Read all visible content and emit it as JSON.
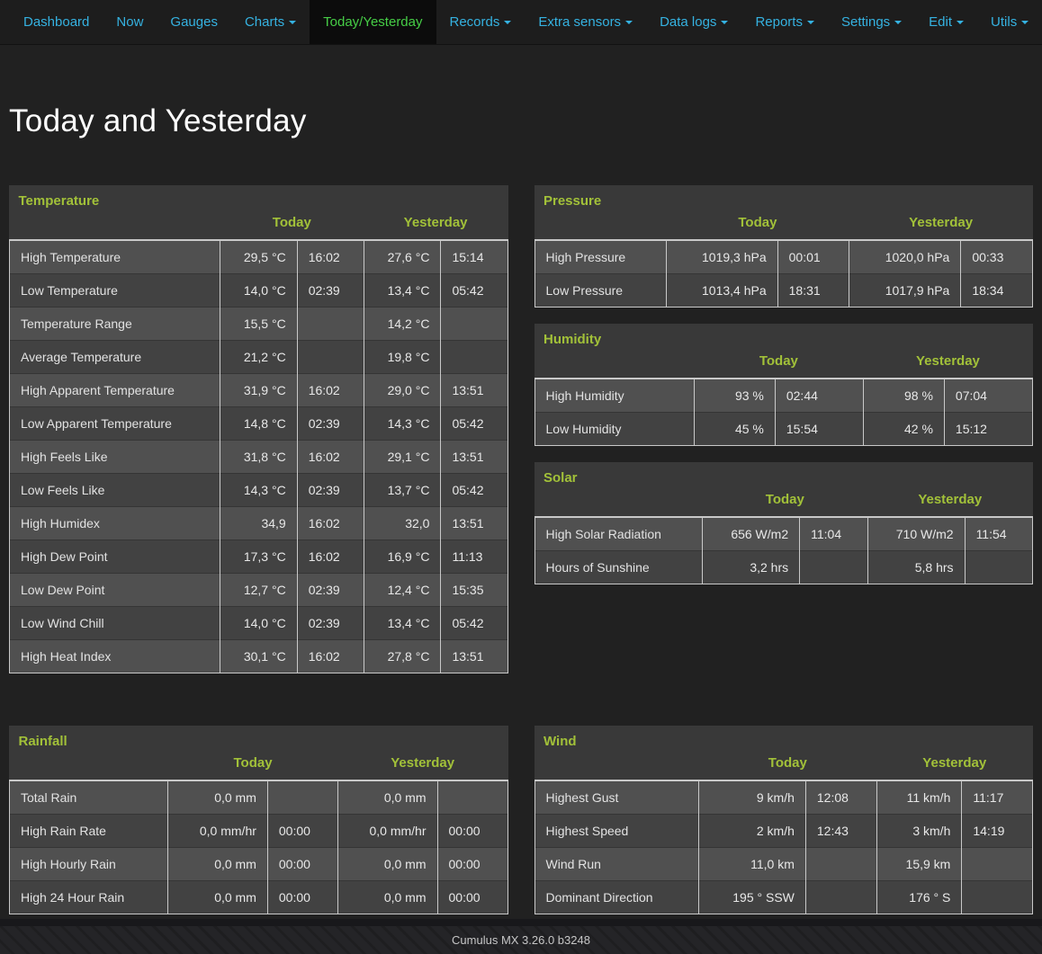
{
  "navbar": {
    "items": [
      {
        "label": "Dashboard",
        "dropdown": false,
        "active": false
      },
      {
        "label": "Now",
        "dropdown": false,
        "active": false
      },
      {
        "label": "Gauges",
        "dropdown": false,
        "active": false
      },
      {
        "label": "Charts",
        "dropdown": true,
        "active": false
      },
      {
        "label": "Today/Yesterday",
        "dropdown": false,
        "active": true
      },
      {
        "label": "Records",
        "dropdown": true,
        "active": false
      },
      {
        "label": "Extra sensors",
        "dropdown": true,
        "active": false
      },
      {
        "label": "Data logs",
        "dropdown": true,
        "active": false
      },
      {
        "label": "Reports",
        "dropdown": true,
        "active": false
      },
      {
        "label": "Settings",
        "dropdown": true,
        "active": false
      },
      {
        "label": "Edit",
        "dropdown": true,
        "active": false
      },
      {
        "label": "Utils",
        "dropdown": true,
        "active": false
      }
    ]
  },
  "page": {
    "title": "Today and Yesterday"
  },
  "colors": {
    "accent_green": "#a2c139",
    "nav_link_blue": "#35b2e1",
    "nav_active_green": "#46cd46",
    "row_odd": "#505050",
    "row_even": "#424242",
    "table_header_bg": "#393939"
  },
  "tables": [
    {
      "id": "temperature",
      "title": "Temperature",
      "today_label": "Today",
      "yesterday_label": "Yesterday",
      "rows": [
        {
          "label": "High Temperature",
          "today_val": "29,5 °C",
          "today_time": "16:02",
          "yest_val": "27,6 °C",
          "yest_time": "15:14"
        },
        {
          "label": "Low Temperature",
          "today_val": "14,0 °C",
          "today_time": "02:39",
          "yest_val": "13,4 °C",
          "yest_time": "05:42"
        },
        {
          "label": "Temperature Range",
          "today_val": "15,5 °C",
          "today_time": "",
          "yest_val": "14,2 °C",
          "yest_time": ""
        },
        {
          "label": "Average Temperature",
          "today_val": "21,2 °C",
          "today_time": "",
          "yest_val": "19,8 °C",
          "yest_time": ""
        },
        {
          "label": "High Apparent Temperature",
          "today_val": "31,9 °C",
          "today_time": "16:02",
          "yest_val": "29,0 °C",
          "yest_time": "13:51"
        },
        {
          "label": "Low Apparent Temperature",
          "today_val": "14,8 °C",
          "today_time": "02:39",
          "yest_val": "14,3 °C",
          "yest_time": "05:42"
        },
        {
          "label": "High Feels Like",
          "today_val": "31,8 °C",
          "today_time": "16:02",
          "yest_val": "29,1 °C",
          "yest_time": "13:51"
        },
        {
          "label": "Low Feels Like",
          "today_val": "14,3 °C",
          "today_time": "02:39",
          "yest_val": "13,7 °C",
          "yest_time": "05:42"
        },
        {
          "label": "High Humidex",
          "today_val": "34,9",
          "today_time": "16:02",
          "yest_val": "32,0",
          "yest_time": "13:51"
        },
        {
          "label": "High Dew Point",
          "today_val": "17,3 °C",
          "today_time": "16:02",
          "yest_val": "16,9 °C",
          "yest_time": "11:13"
        },
        {
          "label": "Low Dew Point",
          "today_val": "12,7 °C",
          "today_time": "02:39",
          "yest_val": "12,4 °C",
          "yest_time": "15:35"
        },
        {
          "label": "Low Wind Chill",
          "today_val": "14,0 °C",
          "today_time": "02:39",
          "yest_val": "13,4 °C",
          "yest_time": "05:42"
        },
        {
          "label": "High Heat Index",
          "today_val": "30,1 °C",
          "today_time": "16:02",
          "yest_val": "27,8 °C",
          "yest_time": "13:51"
        }
      ]
    },
    {
      "id": "pressure",
      "title": "Pressure",
      "today_label": "Today",
      "yesterday_label": "Yesterday",
      "rows": [
        {
          "label": "High Pressure",
          "today_val": "1019,3 hPa",
          "today_time": "00:01",
          "yest_val": "1020,0 hPa",
          "yest_time": "00:33"
        },
        {
          "label": "Low Pressure",
          "today_val": "1013,4 hPa",
          "today_time": "18:31",
          "yest_val": "1017,9 hPa",
          "yest_time": "18:34"
        }
      ]
    },
    {
      "id": "humidity",
      "title": "Humidity",
      "today_label": "Today",
      "yesterday_label": "Yesterday",
      "rows": [
        {
          "label": "High Humidity",
          "today_val": "93 %",
          "today_time": "02:44",
          "yest_val": "98 %",
          "yest_time": "07:04"
        },
        {
          "label": "Low Humidity",
          "today_val": "45 %",
          "today_time": "15:54",
          "yest_val": "42 %",
          "yest_time": "15:12"
        }
      ]
    },
    {
      "id": "solar",
      "title": "Solar",
      "today_label": "Today",
      "yesterday_label": "Yesterday",
      "rows": [
        {
          "label": "High Solar Radiation",
          "today_val": "656 W/m2",
          "today_time": "11:04",
          "yest_val": "710 W/m2",
          "yest_time": "11:54"
        },
        {
          "label": "Hours of Sunshine",
          "today_val": "3,2 hrs",
          "today_time": "",
          "yest_val": "5,8 hrs",
          "yest_time": ""
        }
      ]
    },
    {
      "id": "rainfall",
      "title": "Rainfall",
      "today_label": "Today",
      "yesterday_label": "Yesterday",
      "rows": [
        {
          "label": "Total Rain",
          "today_val": "0,0 mm",
          "today_time": "",
          "yest_val": "0,0 mm",
          "yest_time": ""
        },
        {
          "label": "High Rain Rate",
          "today_val": "0,0 mm/hr",
          "today_time": "00:00",
          "yest_val": "0,0 mm/hr",
          "yest_time": "00:00"
        },
        {
          "label": "High Hourly Rain",
          "today_val": "0,0 mm",
          "today_time": "00:00",
          "yest_val": "0,0 mm",
          "yest_time": "00:00"
        },
        {
          "label": "High 24 Hour Rain",
          "today_val": "0,0 mm",
          "today_time": "00:00",
          "yest_val": "0,0 mm",
          "yest_time": "00:00"
        }
      ]
    },
    {
      "id": "wind",
      "title": "Wind",
      "today_label": "Today",
      "yesterday_label": "Yesterday",
      "rows": [
        {
          "label": "Highest Gust",
          "today_val": "9 km/h",
          "today_time": "12:08",
          "yest_val": "11 km/h",
          "yest_time": "11:17"
        },
        {
          "label": "Highest Speed",
          "today_val": "2 km/h",
          "today_time": "12:43",
          "yest_val": "3 km/h",
          "yest_time": "14:19"
        },
        {
          "label": "Wind Run",
          "today_val": "11,0 km",
          "today_time": "",
          "yest_val": "15,9 km",
          "yest_time": ""
        },
        {
          "label": "Dominant Direction",
          "today_val": "195 ° SSW",
          "today_time": "",
          "yest_val": "176 ° S",
          "yest_time": ""
        }
      ]
    }
  ],
  "footer": {
    "text": "Cumulus MX 3.26.0 b3248"
  }
}
